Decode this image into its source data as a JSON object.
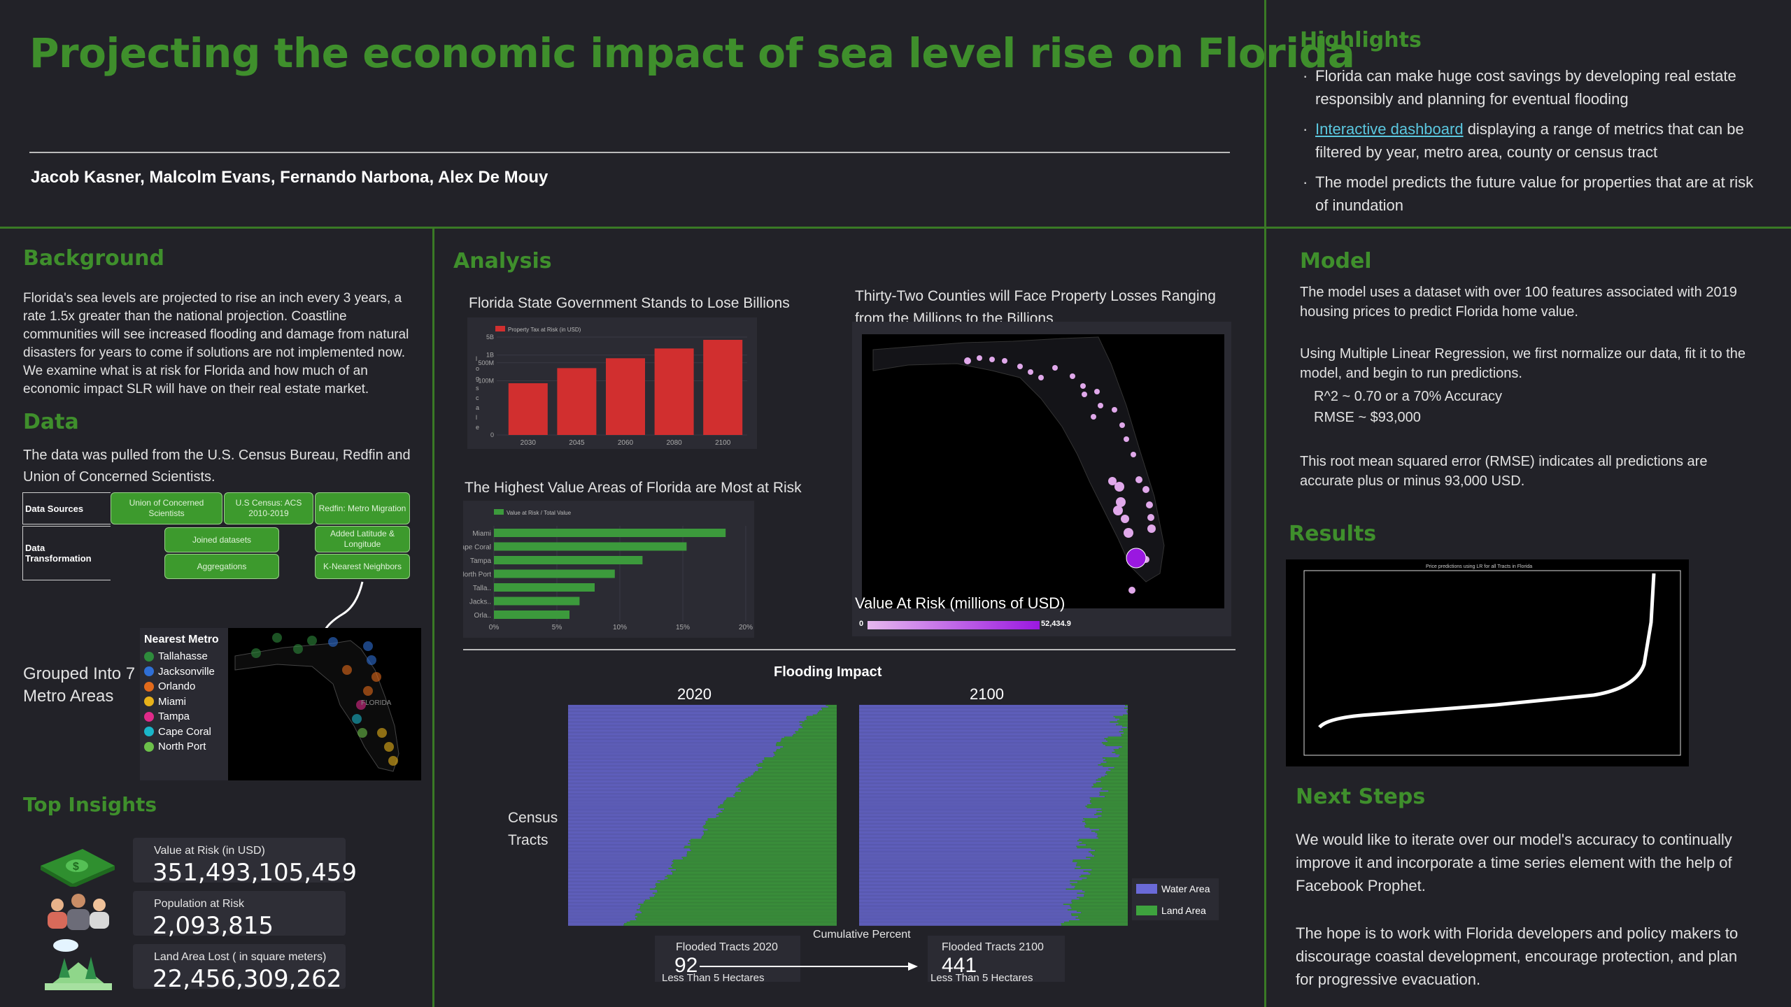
{
  "header": {
    "title": "Projecting the economic impact of sea level rise on Florida",
    "authors": "Jacob Kasner, Malcolm Evans, Fernando Narbona, Alex De Mouy"
  },
  "highlights": {
    "heading": "Highlights",
    "item1": "Florida can make huge cost savings by developing real estate responsibly and planning for eventual flooding",
    "item2_link": "Interactive dashboard",
    "item2_rest": " displaying a range of metrics that can be filtered by year, metro area, county or census tract",
    "item3": "The model predicts the future value for properties that are at risk of inundation"
  },
  "background": {
    "heading": "Background",
    "text": "Florida's sea levels are projected to rise an inch every 3 years, a rate 1.5x greater than the national projection. Coastline communities will see increased flooding and damage from natural disasters for years to come if solutions are not implemented now. We examine what is at risk for Florida and how much of an economic impact SLR will have on their real estate market."
  },
  "data_section": {
    "heading": "Data",
    "text": "The data was pulled from the U.S. Census Bureau, Redfin and Union of Concerned Scientists.",
    "row1_label": "Data Sources",
    "row2_label": "Data Transformation",
    "src1": "Union of Concerned Scientists",
    "src2": "U.S Census: ACS 2010-2019",
    "src3": "Redfin: Metro Migration",
    "tr1": "Joined datasets",
    "tr2": "Added Latitude & Longitude",
    "tr3": "Aggregations",
    "tr4": "K-Nearest Neighbors",
    "grouped": "Grouped Into 7 Metro Areas"
  },
  "metro_legend": {
    "title": "Nearest Metro",
    "items": [
      {
        "name": "Tallahasse",
        "color": "#2e8b3c"
      },
      {
        "name": "Jacksonville",
        "color": "#2f6fd6"
      },
      {
        "name": "Orlando",
        "color": "#e26a1b"
      },
      {
        "name": "Miami",
        "color": "#e8b21a"
      },
      {
        "name": "Tampa",
        "color": "#e02a8a"
      },
      {
        "name": "Cape Coral",
        "color": "#1ab6c9"
      },
      {
        "name": "North Port",
        "color": "#6cc04a"
      }
    ],
    "map_label": "FLORIDA"
  },
  "insights": {
    "heading": "Top Insights",
    "value_label": "Value at Risk (in USD)",
    "value": "351,493,105,459",
    "pop_label": "Population at Risk",
    "pop": "2,093,815",
    "land_label": "Land Area Lost ( in square meters)",
    "land": "22,456,309,262"
  },
  "analysis": {
    "heading": "Analysis",
    "chart1_title": "Florida State Government Stands to Lose Billions",
    "chart2_title": "The Highest Value Areas of Florida are Most at Risk",
    "map_title": "Thirty-Two Counties will Face Property Losses Ranging from the Millions to the Billions",
    "map_scale_label": "Value At Risk (millions of USD)",
    "map_scale_min": "0",
    "map_scale_max": "52,434.9"
  },
  "flooding": {
    "title": "Flooding Impact",
    "year1": "2020",
    "year2": "2100",
    "ylabel": "Census Tracts",
    "xlabel": "Cumulative Percent",
    "legend_water": "Water Area",
    "legend_land": "Land Area",
    "card1_label": "Flooded Tracts 2020",
    "card1_value": "92",
    "card1_sub": "Less Than 5 Hectares",
    "card2_label": "Flooded Tracts 2100",
    "card2_value": "441",
    "card2_sub": "Less Than 5 Hectares",
    "water_color": "#6a6ad8",
    "land_color": "#3ea33e"
  },
  "model": {
    "heading": "Model",
    "p1": "The model uses a dataset with over 100 features associated with 2019 housing prices to predict Florida home value.",
    "p2": "Using Multiple Linear Regression, we first normalize our data, fit it to the model, and begin to run predictions.",
    "r2": "R^2 ~ 0.70 or a 70% Accuracy",
    "rmse": "RMSE ~ $93,000",
    "p3": "This root mean squared error (RMSE) indicates all predictions are accurate plus or minus 93,000 USD."
  },
  "results": {
    "heading": "Results",
    "plot_title": "Price predictions using LR for all Tracts in Florida"
  },
  "next_steps": {
    "heading": "Next Steps",
    "p1": "We would like to iterate over our model's accuracy to continually improve it and incorporate a time series element with the help of Facebook Prophet.",
    "p2": "The hope is to work with Florida developers and policy makers to discourage coastal development, encourage protection, and plan for progressive evacuation."
  },
  "chart_data": [
    {
      "type": "bar",
      "title": "Florida State Government Stands to Lose Billions",
      "legend": "Property Tax at Risk (in USD)",
      "categories": [
        "2030",
        "2045",
        "2060",
        "2080",
        "2100"
      ],
      "values": [
        80000000,
        310000000,
        750000000,
        1800000000,
        3900000000
      ],
      "scale": "log",
      "ylim": [
        1,
        5000000000
      ],
      "yticks": [
        {
          "v": 1,
          "label": "0"
        },
        {
          "v": 100000000,
          "label": "100M"
        },
        {
          "v": 500000000,
          "label": "500M"
        },
        {
          "v": 1000000000,
          "label": "1B"
        },
        {
          "v": 5000000000,
          "label": "5B"
        }
      ],
      "ylabel": "log scale",
      "color": "#d12f2f"
    },
    {
      "type": "bar",
      "orientation": "horizontal",
      "title": "The Highest Value Areas of Florida are Most at Risk",
      "legend": "Value at Risk / Total Value",
      "categories": [
        "Miami",
        "Cape Coral",
        "Tampa",
        "North Port",
        "Talla..",
        "Jacks..",
        "Orla.."
      ],
      "values": [
        18.4,
        15.3,
        11.8,
        9.6,
        8.0,
        6.8,
        6.0
      ],
      "xlim": [
        0,
        20
      ],
      "xticks": [
        "0%",
        "5%",
        "10%",
        "15%",
        "20%"
      ],
      "color": "#3c9a3c"
    }
  ]
}
